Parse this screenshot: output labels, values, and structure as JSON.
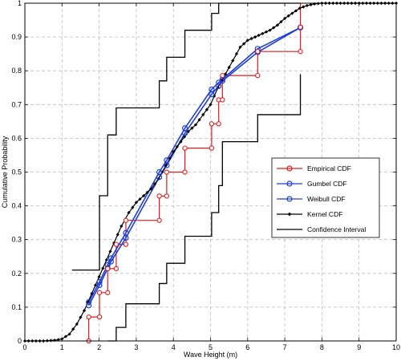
{
  "chart_data": {
    "type": "line",
    "xlabel": "Wave Height (m)",
    "ylabel": "Cumulative Probability",
    "xlim": [
      0,
      10
    ],
    "ylim": [
      0,
      1
    ],
    "x_ticks": [
      "0",
      "1",
      "2",
      "3",
      "4",
      "5",
      "6",
      "7",
      "8",
      "9",
      "10"
    ],
    "y_ticks": [
      "0",
      "0.1",
      "0.2",
      "0.3",
      "0.4",
      "0.5",
      "0.6",
      "0.7",
      "0.8",
      "0.9",
      "1"
    ],
    "grid": true,
    "legend_position": "right",
    "series": [
      {
        "name": "Empirical CDF",
        "style": "step-markers",
        "color": "#e41a1c",
        "x": [
          1.72,
          2.01,
          2.23,
          2.46,
          2.72,
          3.62,
          3.82,
          4.31,
          5.03,
          5.22,
          5.32,
          6.27,
          7.42
        ],
        "y": [
          0.071,
          0.143,
          0.214,
          0.286,
          0.357,
          0.429,
          0.5,
          0.571,
          0.643,
          0.714,
          0.786,
          0.857,
          0.929
        ]
      },
      {
        "name": "Gumbel CDF",
        "style": "line-circle",
        "color": "#1f3fd6",
        "x": [
          1.72,
          2.01,
          2.23,
          2.32,
          2.72,
          3.62,
          3.82,
          4.31,
          5.03,
          5.22,
          5.32,
          6.27,
          7.42
        ],
        "y": [
          0.105,
          0.165,
          0.215,
          0.235,
          0.305,
          0.485,
          0.52,
          0.615,
          0.73,
          0.755,
          0.77,
          0.855,
          0.928
        ]
      },
      {
        "name": "Weibull CDF",
        "style": "line-circle",
        "color": "#1f3fd6",
        "x": [
          1.72,
          2.01,
          2.23,
          2.32,
          2.72,
          3.62,
          3.82,
          4.31,
          5.03,
          5.22,
          5.32,
          6.27,
          7.42
        ],
        "y": [
          0.115,
          0.175,
          0.225,
          0.245,
          0.32,
          0.5,
          0.535,
          0.63,
          0.745,
          0.765,
          0.775,
          0.865,
          0.928
        ]
      },
      {
        "name": "Kernel CDF",
        "style": "line-diamond",
        "color": "#000000",
        "x": [
          0,
          0.5,
          0.8,
          1.0,
          1.2,
          1.4,
          1.6,
          1.8,
          2.0,
          2.2,
          2.4,
          2.6,
          2.8,
          3.0,
          3.2,
          3.4,
          3.6,
          3.8,
          4.0,
          4.2,
          4.4,
          4.6,
          4.8,
          5.0,
          5.2,
          5.4,
          5.6,
          5.8,
          6.0,
          6.2,
          6.4,
          6.6,
          6.8,
          7.0,
          7.2,
          7.4,
          7.6,
          7.8,
          8.0,
          8.5,
          9.0,
          10.0
        ],
        "y": [
          0,
          0.0,
          0.002,
          0.006,
          0.02,
          0.05,
          0.09,
          0.14,
          0.19,
          0.24,
          0.29,
          0.34,
          0.38,
          0.41,
          0.43,
          0.45,
          0.48,
          0.52,
          0.56,
          0.59,
          0.62,
          0.64,
          0.67,
          0.7,
          0.75,
          0.79,
          0.83,
          0.87,
          0.89,
          0.9,
          0.91,
          0.92,
          0.935,
          0.955,
          0.97,
          0.985,
          0.993,
          0.998,
          1.0,
          1.0,
          1.0,
          1.0
        ]
      },
      {
        "name": "Confidence Interval",
        "style": "step",
        "color": "#000000",
        "upper": {
          "x": [
            1.72,
            2.01,
            2.23,
            2.46,
            2.72,
            3.62,
            3.82,
            4.31,
            5.03,
            5.22,
            5.32,
            6.27,
            7.42
          ],
          "y": [
            0.21,
            0.43,
            0.61,
            0.69,
            0.69,
            0.77,
            0.84,
            0.92,
            0.97,
            1.0,
            1.0,
            1.0,
            1.0
          ]
        },
        "lower": {
          "x": [
            2.23,
            2.46,
            2.72,
            3.62,
            3.82,
            4.31,
            5.03,
            5.22,
            5.32,
            6.27,
            7.42
          ],
          "y": [
            0.0,
            0.04,
            0.11,
            0.17,
            0.23,
            0.31,
            0.38,
            0.46,
            0.59,
            0.67,
            0.79
          ]
        }
      }
    ]
  }
}
